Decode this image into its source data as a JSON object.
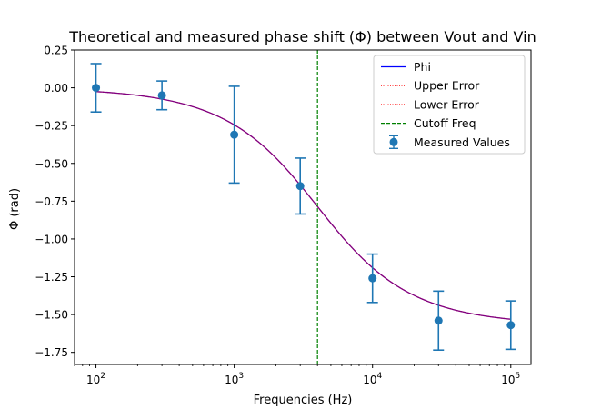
{
  "chart_data": {
    "type": "line",
    "title": "Theoretical and measured phase shift (Φ) between Vout and Vin",
    "xlabel": "Frequencies (Hz)",
    "ylabel": "Φ (rad)",
    "xscale": "log",
    "xlim": [
      70,
      140000
    ],
    "ylim": [
      -1.83,
      0.25
    ],
    "yticks": [
      0.25,
      0.0,
      -0.25,
      -0.5,
      -0.75,
      -1.0,
      -1.25,
      -1.5,
      -1.75
    ],
    "ytick_labels": [
      "0.25",
      "0.00",
      "−0.25",
      "−0.50",
      "−0.75",
      "−1.00",
      "−1.25",
      "−1.50",
      "−1.75"
    ],
    "xticks": [
      {
        "base": "10",
        "exp": "2",
        "value": 100
      },
      {
        "base": "10",
        "exp": "3",
        "value": 1000
      },
      {
        "base": "10",
        "exp": "4",
        "value": 10000
      },
      {
        "base": "10",
        "exp": "5",
        "value": 100000
      }
    ],
    "cutoff_frequency": 4000,
    "series": [
      {
        "name": "Phi",
        "kind": "theory",
        "color": "#0000ff"
      },
      {
        "name": "Upper Error",
        "kind": "theory-upper",
        "color": "#ff0000"
      },
      {
        "name": "Lower Error",
        "kind": "theory-lower",
        "color": "#ff0000"
      },
      {
        "name": "Cutoff Freq",
        "kind": "vline",
        "color": "#008000"
      },
      {
        "name": "Measured Values",
        "kind": "errorbar",
        "color": "#1f77b4",
        "x": [
          100,
          300,
          1000,
          3000,
          10000,
          30000,
          100000
        ],
        "y": [
          0.0,
          -0.05,
          -0.31,
          -0.65,
          -1.26,
          -1.54,
          -1.57
        ],
        "err": [
          0.16,
          0.095,
          0.32,
          0.185,
          0.16,
          0.195,
          0.16
        ]
      }
    ],
    "legend_position": "top-right",
    "grid": false
  }
}
